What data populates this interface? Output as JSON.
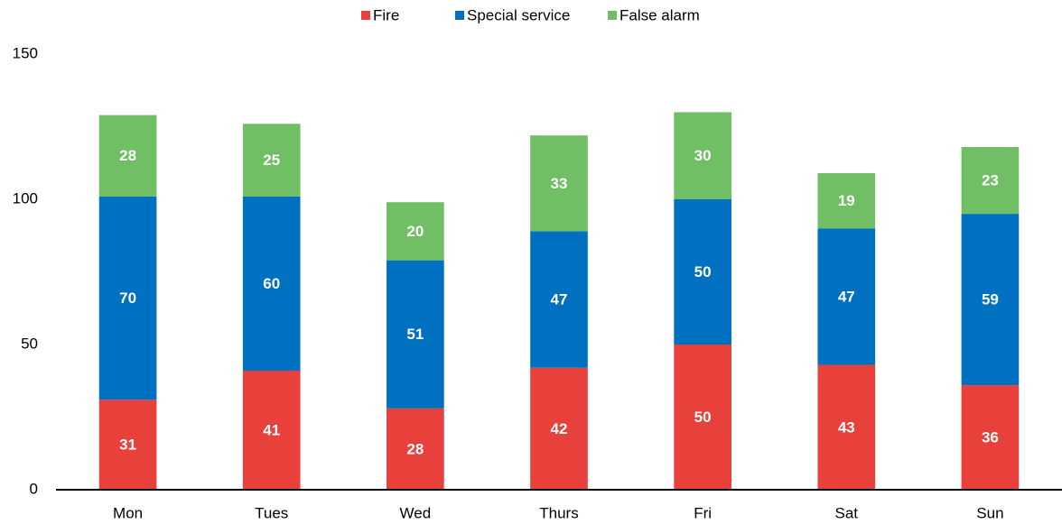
{
  "chart_data": {
    "type": "stacked_bar",
    "categories": [
      "Mon",
      "Tues",
      "Wed",
      "Thurs",
      "Fri",
      "Sat",
      "Sun"
    ],
    "series": [
      {
        "name": "Fire",
        "color": "#e8403a",
        "values": [
          31,
          41,
          28,
          42,
          50,
          43,
          36
        ]
      },
      {
        "name": "Special service",
        "color": "#0070c0",
        "values": [
          70,
          60,
          51,
          47,
          50,
          47,
          59
        ]
      },
      {
        "name": "False alarm",
        "color": "#70bf65",
        "values": [
          28,
          25,
          20,
          33,
          30,
          19,
          23
        ]
      }
    ],
    "ylim": [
      0,
      150
    ],
    "yticks": [
      0,
      50,
      100,
      150
    ],
    "grid": false,
    "legend": "top"
  }
}
